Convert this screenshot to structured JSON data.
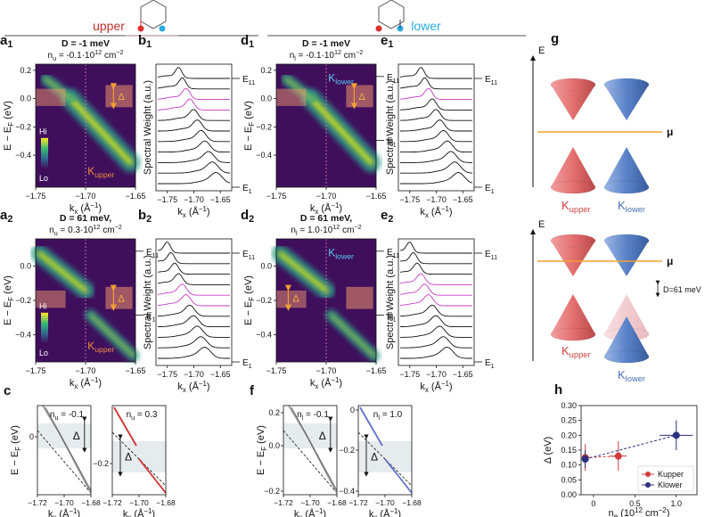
{
  "header": {
    "left": "upper",
    "right": "lower"
  },
  "panels": [
    {
      "label": [
        "a",
        "1"
      ],
      "title": "D = -1 meV",
      "subtitle": [
        "n",
        "u",
        " = -0.1·10",
        "12",
        " cm",
        "−2"
      ],
      "yticks": [
        "0.2",
        "0.0",
        "−0.2",
        "−0.4"
      ],
      "xticks": [
        "−1.75",
        "−1.70",
        "−1.65"
      ],
      "xlabel": [
        "k",
        "x",
        " (Å",
        "−1",
        ")"
      ],
      "ylabel": [
        "E − E",
        "F",
        " (eV)"
      ],
      "colorbar": [
        "Hi",
        "Lo"
      ],
      "valley": [
        "K",
        "upper"
      ],
      "gap": "Δ"
    },
    {
      "label": [
        "b",
        "1"
      ],
      "xticks": [
        "−1.75",
        "−1.70",
        "−1.65"
      ],
      "xlabel": [
        "k",
        "x",
        " (Å",
        "−1",
        ")"
      ],
      "ylabel": "Spectral Weight (a.u.)",
      "levels": [
        [
          "E",
          "11"
        ],
        [
          "E",
          "1"
        ]
      ]
    },
    {
      "label": [
        "d",
        "1"
      ],
      "title": "D = -1 meV",
      "subtitle": [
        "n",
        "l",
        " = -0.1·10",
        "12",
        " cm",
        "−2"
      ],
      "yticks": [
        "0.2",
        "0.0",
        "−0.2",
        "−0.4"
      ],
      "xticks": [
        "−1.75",
        "−1.70",
        "−1.65"
      ],
      "xlabel": [
        "k",
        "x",
        " (Å",
        "−1",
        ")"
      ],
      "ylabel": [
        "E − E",
        "F",
        " (eV)"
      ],
      "valley": [
        "K",
        "lower"
      ],
      "gap": "Δ",
      "levels": [
        [
          "E",
          "11"
        ],
        [
          "E",
          "1"
        ]
      ]
    },
    {
      "label": [
        "e",
        "1"
      ],
      "xticks": [
        "−1.75",
        "−1.70",
        "−1.65"
      ],
      "xlabel": [
        "k",
        "x",
        " (Å",
        "−1",
        ")"
      ],
      "ylabel": "Spectral Weight (a.u.)",
      "levels": [
        [
          "E",
          "11"
        ],
        [
          "E",
          "1"
        ]
      ]
    },
    {
      "label": [
        "g"
      ],
      "axis": "E",
      "mu": "μ",
      "valleys": [
        [
          "K",
          "upper"
        ],
        [
          "K",
          "lower"
        ]
      ]
    },
    {
      "label": [
        "a",
        "2"
      ],
      "title": "D = 61 meV,",
      "subtitle": [
        "n",
        "u",
        " = 0.3·10",
        "12",
        " cm",
        "−2"
      ],
      "yticks": [
        "0.0",
        "−0.2",
        "−0.4"
      ],
      "xticks": [
        "−1.75",
        "−1.70",
        "−1.65"
      ],
      "xlabel": [
        "k",
        "x",
        " (Å",
        "−1",
        ")"
      ],
      "ylabel": [
        "E − E",
        "F",
        " (eV)"
      ],
      "colorbar": [
        "Hi",
        "Lo"
      ],
      "valley": [
        "K",
        "upper"
      ],
      "gap": "Δ",
      "levels": [
        [
          "E",
          "11"
        ],
        [
          "E",
          "1"
        ]
      ]
    },
    {
      "label": [
        "b",
        "2"
      ],
      "xticks": [
        "−1.75",
        "−1.70",
        "−1.65"
      ],
      "xlabel": [
        "k",
        "x",
        " (Å",
        "−1",
        ")"
      ],
      "ylabel": "Spectral Weight (a.u.)",
      "levels": [
        [
          "E",
          "11"
        ],
        [
          "E",
          "1"
        ]
      ]
    },
    {
      "label": [
        "d",
        "2"
      ],
      "title": "D = 61 meV,",
      "subtitle": [
        "n",
        "l",
        " = 1.0·10",
        "12",
        " cm",
        "−2"
      ],
      "yticks": [
        "0.0",
        "−0.2",
        "−0.4"
      ],
      "xticks": [
        "−1.75",
        "−1.70",
        "−1.65"
      ],
      "xlabel": [
        "k",
        "x",
        " (Å",
        "−1",
        ")"
      ],
      "ylabel": [
        "E − E",
        "F",
        " (eV)"
      ],
      "valley": [
        "K",
        "lower"
      ],
      "gap": "Δ",
      "levels": [
        [
          "E",
          "11"
        ],
        [
          "E",
          "1"
        ]
      ]
    },
    {
      "label": [
        "e",
        "2"
      ],
      "xticks": [
        "−1.75",
        "−1.70",
        "−1.65"
      ],
      "xlabel": [
        "k",
        "x",
        " (Å",
        "−1",
        ")"
      ],
      "ylabel": "Spectral Weight (a.u.)",
      "levels": [
        [
          "E",
          "11"
        ],
        [
          "E",
          "1"
        ]
      ]
    },
    {
      "axis": "E",
      "mu": "μ",
      "shift": "D=61 meV",
      "valleys": [
        [
          "K",
          "upper"
        ],
        [
          "K",
          "lower"
        ]
      ]
    },
    {
      "label": [
        "c"
      ],
      "ylabel": [
        "E − E",
        "F",
        " (eV)"
      ],
      "plots": [
        {
          "title": [
            "n",
            "u",
            " = -0.1"
          ],
          "yticks": [
            "0"
          ],
          "xticks": [
            "−1.72",
            "−1.70",
            "−1.68"
          ],
          "xlabel": [
            "k",
            "x",
            " (Å",
            "−1",
            ")"
          ],
          "gap": "Δ"
        },
        {
          "title": [
            "n",
            "u",
            " = 0.3"
          ],
          "yticks": [
            "−0.2"
          ],
          "xticks": [
            "−1.72",
            "−1.70",
            "−1.68"
          ],
          "xlabel": [
            "k",
            "x",
            " (Å",
            "−1",
            ")"
          ],
          "gap": "Δ"
        }
      ]
    },
    {
      "label": [
        "f"
      ],
      "ylabel": [
        "E − E",
        "F",
        " (eV)"
      ],
      "plots": [
        {
          "title": [
            "n",
            "l",
            " = -0.1"
          ],
          "yticks": [
            "0.2",
            "0.0",
            "−0.2"
          ],
          "xticks": [
            "−1.72",
            "−1.70",
            "−1.68"
          ],
          "xlabel": [
            "k",
            "x",
            " (Å",
            "−1",
            ")"
          ],
          "gap": "Δ"
        },
        {
          "title": [
            "n",
            "l",
            " = 1.0"
          ],
          "yticks": [
            "0",
            "−0.2",
            "−0.4"
          ],
          "xticks": [
            "−1.72",
            "−1.70",
            "−1.68"
          ],
          "xlabel": [
            "k",
            "x",
            " (Å",
            "−1",
            ")"
          ],
          "gap": "Δ"
        }
      ]
    }
  ],
  "chart_data": {
    "type": "scatter",
    "panel_label": "h",
    "xlabel": [
      "n",
      "e",
      " (10",
      "12",
      " cm",
      "−2",
      ")"
    ],
    "ylabel": "Δ (eV)",
    "xlim": [
      -0.15,
      1.25
    ],
    "xticks": [
      0,
      0.5,
      {
        "value": 1,
        "label": "1.0"
      }
    ],
    "ylim": [
      0,
      0.3
    ],
    "yticks": [
      {
        "value": 0,
        "label": "0.00"
      },
      {
        "value": 0.05,
        "label": "0.05"
      },
      {
        "value": 0.1,
        "label": "0.10"
      },
      {
        "value": 0.15,
        "label": "0.15"
      },
      {
        "value": 0.2,
        "label": "0.20"
      },
      {
        "value": 0.25,
        "label": "0.25"
      },
      {
        "value": 0.3,
        "label": "0.30"
      }
    ],
    "legend": "lower right",
    "series": [
      {
        "name": "Kupper",
        "color": "#d23c3c",
        "x": [
          -0.1,
          0.3
        ],
        "values": [
          0.125,
          0.13
        ],
        "xerr": [
          0.05,
          0.1
        ],
        "yerr": [
          0.045,
          0.05
        ]
      },
      {
        "name": "Klower",
        "color": "#2b2f7e",
        "x": [
          -0.1,
          1.0
        ],
        "values": [
          0.12,
          0.2
        ],
        "xerr": [
          0.03,
          0.2
        ],
        "yerr": [
          0.03,
          0.05
        ]
      }
    ]
  }
}
